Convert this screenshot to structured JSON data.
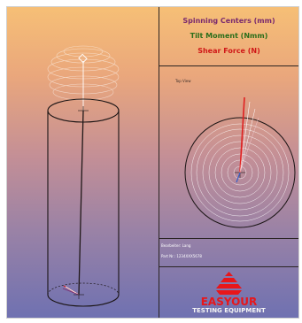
{
  "legend": [
    {
      "label": "Spinning Centers (mm)",
      "color": "#7a2a6e"
    },
    {
      "label": "Tilt Moment (Nmm)",
      "color": "#2a6e1a"
    },
    {
      "label": "Shear Force (N)",
      "color": "#d01818"
    }
  ],
  "top_view": {
    "label": "Top View"
  },
  "info": {
    "line1": "Bearbeiter: Lang",
    "line2": "Part Nr.: 1234XXX5678"
  },
  "logo": {
    "name": "EASYOUR",
    "tagline": "TESTING EQUIPMENT",
    "brand_color": "#e8161a"
  }
}
